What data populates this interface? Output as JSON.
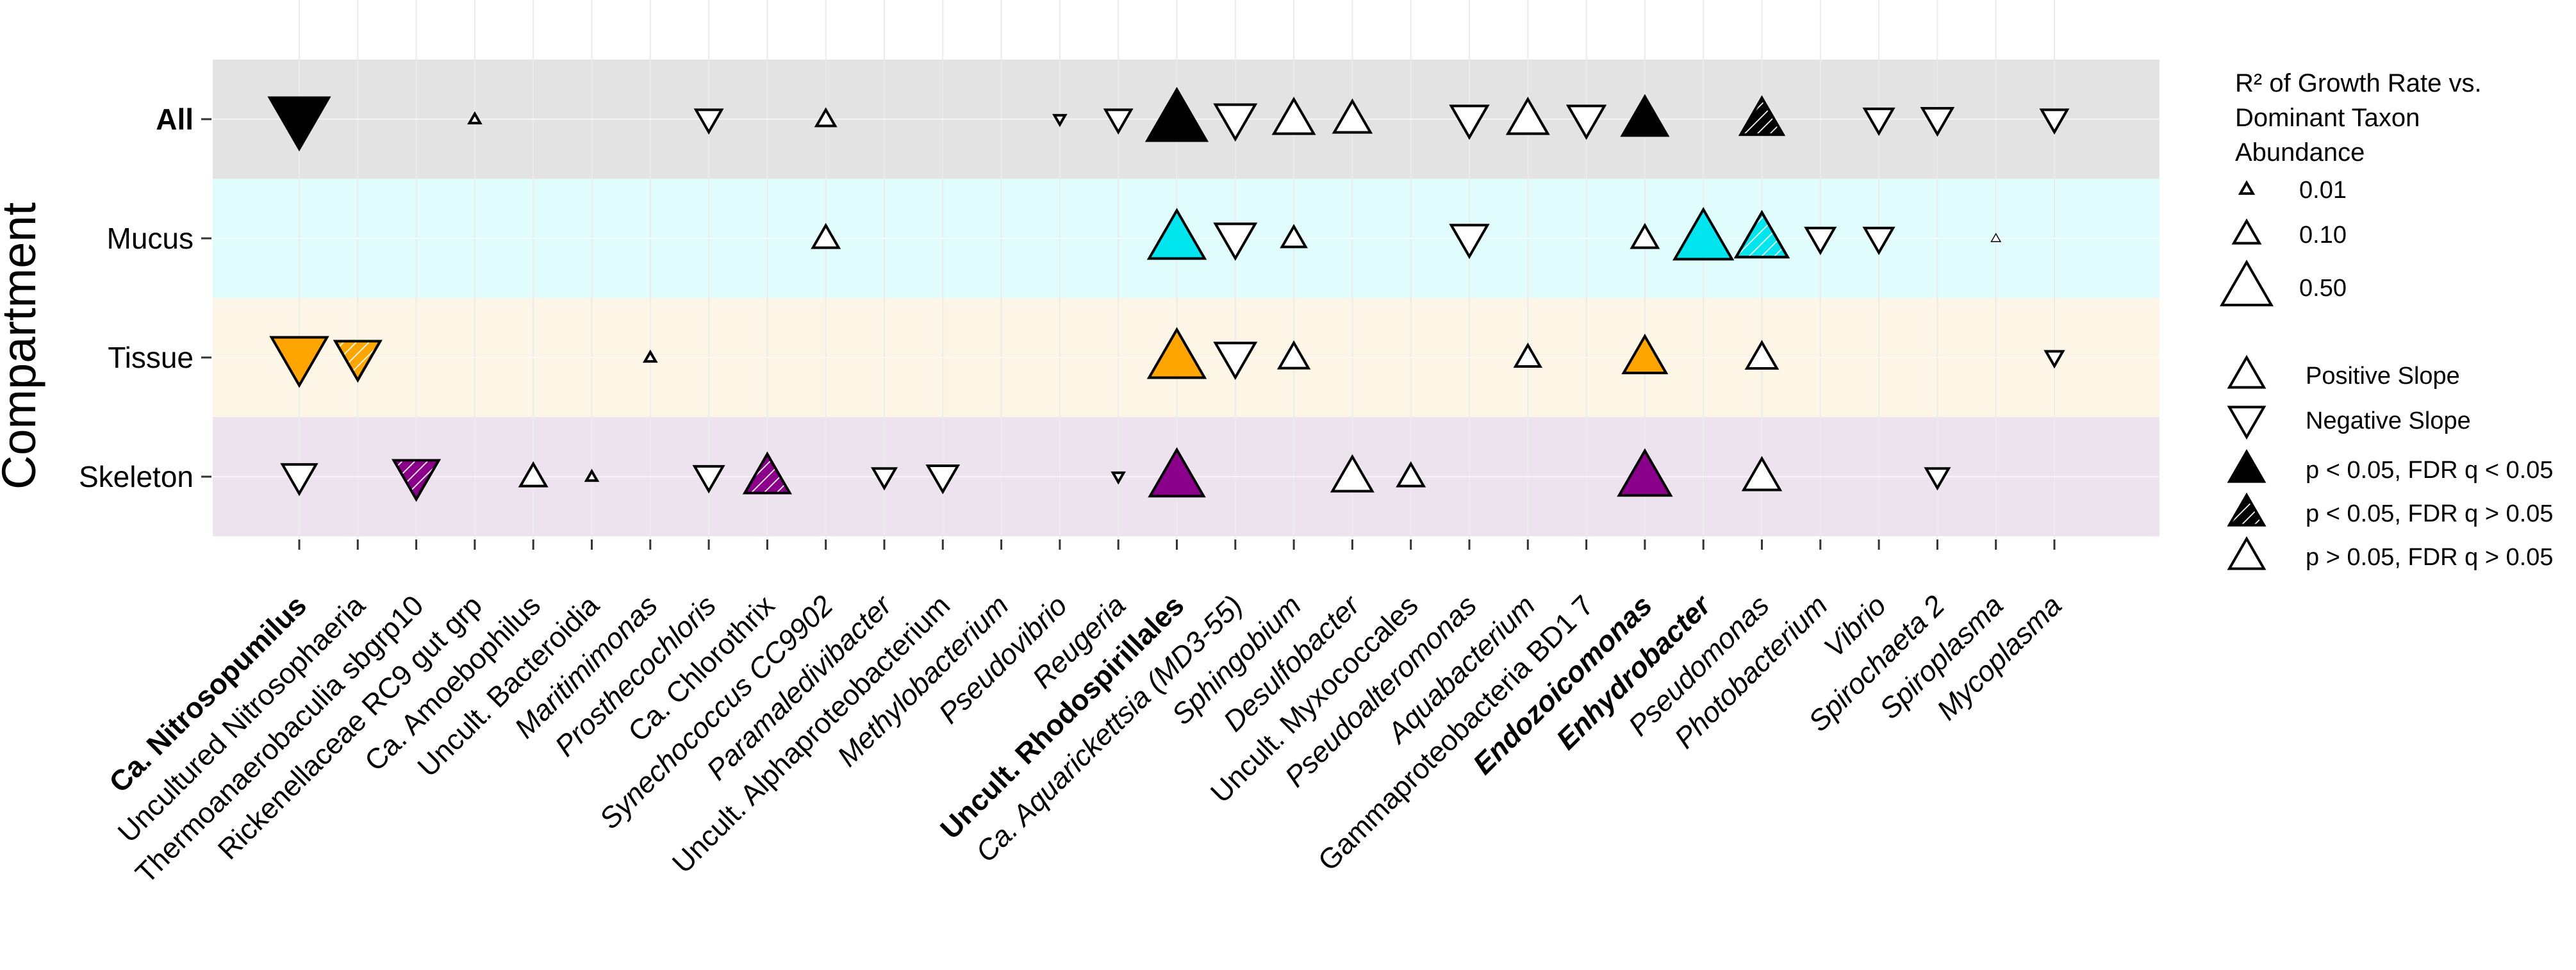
{
  "chart_data": {
    "type": "scatter",
    "y_axis_title": "Compartment",
    "compartments": [
      {
        "label": "All",
        "bold": true
      },
      {
        "label": "Mucus",
        "bold": false
      },
      {
        "label": "Tissue",
        "bold": false
      },
      {
        "label": "Skeleton",
        "bold": false
      }
    ],
    "taxa": [
      {
        "label": "Ca. Nitrosopumilus",
        "style": "bold"
      },
      {
        "label": "Uncultured Nitrosophaeria",
        "style": "normal"
      },
      {
        "label": "Thermoanaerobaculia sbgrp10",
        "style": "normal"
      },
      {
        "label": "Rickenellaceae RC9 gut grp",
        "style": "normal"
      },
      {
        "label": "Ca. Amoebophilus",
        "style": "normal"
      },
      {
        "label": "Uncult. Bacteroidia",
        "style": "normal"
      },
      {
        "label": "Maritimimonas",
        "style": "italic"
      },
      {
        "label": "Prosthecochloris",
        "style": "italic"
      },
      {
        "label": "Ca. Chlorothrix",
        "style": "normal"
      },
      {
        "label": "Synechococcus CC9902",
        "style": "italic"
      },
      {
        "label": "Paramaledivibacter",
        "style": "italic"
      },
      {
        "label": "Uncult. Alphaproteobacterium",
        "style": "normal"
      },
      {
        "label": "Methylobacterium",
        "style": "italic"
      },
      {
        "label": "Pseudovibrio",
        "style": "italic"
      },
      {
        "label": "Reugeria",
        "style": "italic"
      },
      {
        "label": "Uncult. Rhodospirillales",
        "style": "bold"
      },
      {
        "label": "Ca. Aquarickettsia (MD3-55)",
        "style": "italic"
      },
      {
        "label": "Sphingobium",
        "style": "italic"
      },
      {
        "label": "Desulfobacter",
        "style": "italic"
      },
      {
        "label": "Uncult. Myxococcales",
        "style": "normal"
      },
      {
        "label": "Pseudoalteromonas",
        "style": "italic"
      },
      {
        "label": "Aquabacterium",
        "style": "italic"
      },
      {
        "label": "Gammaproteobacteria BD1 7",
        "style": "normal"
      },
      {
        "label": "Endozoicomonas",
        "style": "bolditalic"
      },
      {
        "label": "Enhydrobacter",
        "style": "bolditalic"
      },
      {
        "label": "Pseudomonas",
        "style": "italic"
      },
      {
        "label": "Photobacterium",
        "style": "italic"
      },
      {
        "label": "Vibrio",
        "style": "italic"
      },
      {
        "label": "Spirochaeta 2",
        "style": "italic"
      },
      {
        "label": "Spiroplasma",
        "style": "italic"
      },
      {
        "label": "Mycoplasma",
        "style": "italic"
      }
    ],
    "fill_colors": {
      "All": "#000000",
      "Mucus": "#00e5ee",
      "Tissue": "#ffa500",
      "Skeleton": "#8b008b"
    },
    "band_colors": {
      "All": "#e3e3e3",
      "Mucus": "#e0fcfc",
      "Tissue": "#fdf5e6",
      "Skeleton": "#ede3ee"
    },
    "points": [
      {
        "taxon": 0,
        "compartment": "All",
        "direction": "negative",
        "sig": "sig_fdr",
        "r2": 0.75
      },
      {
        "taxon": 3,
        "compartment": "All",
        "direction": "positive",
        "sig": "ns",
        "r2": 0.005
      },
      {
        "taxon": 7,
        "compartment": "All",
        "direction": "negative",
        "sig": "ns",
        "r2": 0.1
      },
      {
        "taxon": 9,
        "compartment": "All",
        "direction": "positive",
        "sig": "ns",
        "r2": 0.04
      },
      {
        "taxon": 13,
        "compartment": "All",
        "direction": "negative",
        "sig": "ns",
        "r2": 0.005
      },
      {
        "taxon": 14,
        "compartment": "All",
        "direction": "negative",
        "sig": "ns",
        "r2": 0.1
      },
      {
        "taxon": 15,
        "compartment": "All",
        "direction": "positive",
        "sig": "sig_fdr",
        "r2": 0.75
      },
      {
        "taxon": 16,
        "compartment": "All",
        "direction": "negative",
        "sig": "ns",
        "r2": 0.3
      },
      {
        "taxon": 17,
        "compartment": "All",
        "direction": "positive",
        "sig": "ns",
        "r2": 0.3
      },
      {
        "taxon": 18,
        "compartment": "All",
        "direction": "positive",
        "sig": "ns",
        "r2": 0.24
      },
      {
        "taxon": 20,
        "compartment": "All",
        "direction": "negative",
        "sig": "ns",
        "r2": 0.24
      },
      {
        "taxon": 21,
        "compartment": "All",
        "direction": "positive",
        "sig": "ns",
        "r2": 0.3
      },
      {
        "taxon": 22,
        "compartment": "All",
        "direction": "negative",
        "sig": "ns",
        "r2": 0.24
      },
      {
        "taxon": 23,
        "compartment": "All",
        "direction": "positive",
        "sig": "sig_fdr",
        "r2": 0.4
      },
      {
        "taxon": 25,
        "compartment": "All",
        "direction": "positive",
        "sig": "sig_nofdr",
        "r2": 0.35
      },
      {
        "taxon": 27,
        "compartment": "All",
        "direction": "negative",
        "sig": "ns",
        "r2": 0.13
      },
      {
        "taxon": 28,
        "compartment": "All",
        "direction": "negative",
        "sig": "ns",
        "r2": 0.15
      },
      {
        "taxon": 30,
        "compartment": "All",
        "direction": "negative",
        "sig": "ns",
        "r2": 0.1
      },
      {
        "taxon": 9,
        "compartment": "Mucus",
        "direction": "positive",
        "sig": "ns",
        "r2": 0.1
      },
      {
        "taxon": 15,
        "compartment": "Mucus",
        "direction": "positive",
        "sig": "sig_fdr",
        "r2": 0.65
      },
      {
        "taxon": 16,
        "compartment": "Mucus",
        "direction": "negative",
        "sig": "ns",
        "r2": 0.3
      },
      {
        "taxon": 17,
        "compartment": "Mucus",
        "direction": "positive",
        "sig": "ns",
        "r2": 0.08
      },
      {
        "taxon": 20,
        "compartment": "Mucus",
        "direction": "negative",
        "sig": "ns",
        "r2": 0.24
      },
      {
        "taxon": 23,
        "compartment": "Mucus",
        "direction": "positive",
        "sig": "ns",
        "r2": 0.1
      },
      {
        "taxon": 24,
        "compartment": "Mucus",
        "direction": "positive",
        "sig": "sig_fdr",
        "r2": 0.7
      },
      {
        "taxon": 25,
        "compartment": "Mucus",
        "direction": "positive",
        "sig": "sig_nofdr",
        "r2": 0.55
      },
      {
        "taxon": 26,
        "compartment": "Mucus",
        "direction": "negative",
        "sig": "ns",
        "r2": 0.13
      },
      {
        "taxon": 27,
        "compartment": "Mucus",
        "direction": "negative",
        "sig": "ns",
        "r2": 0.13
      },
      {
        "taxon": 29,
        "compartment": "Mucus",
        "direction": "positive",
        "sig": "ns",
        "r2": 0.002
      },
      {
        "taxon": 0,
        "compartment": "Tissue",
        "direction": "negative",
        "sig": "sig_fdr",
        "r2": 0.65
      },
      {
        "taxon": 1,
        "compartment": "Tissue",
        "direction": "negative",
        "sig": "sig_nofdr",
        "r2": 0.4
      },
      {
        "taxon": 6,
        "compartment": "Tissue",
        "direction": "positive",
        "sig": "ns",
        "r2": 0.005
      },
      {
        "taxon": 15,
        "compartment": "Tissue",
        "direction": "positive",
        "sig": "sig_fdr",
        "r2": 0.65
      },
      {
        "taxon": 16,
        "compartment": "Tissue",
        "direction": "negative",
        "sig": "ns",
        "r2": 0.3
      },
      {
        "taxon": 17,
        "compartment": "Tissue",
        "direction": "positive",
        "sig": "ns",
        "r2": 0.14
      },
      {
        "taxon": 21,
        "compartment": "Tissue",
        "direction": "positive",
        "sig": "ns",
        "r2": 0.09
      },
      {
        "taxon": 23,
        "compartment": "Tissue",
        "direction": "positive",
        "sig": "sig_fdr",
        "r2": 0.35
      },
      {
        "taxon": 25,
        "compartment": "Tissue",
        "direction": "positive",
        "sig": "ns",
        "r2": 0.15
      },
      {
        "taxon": 30,
        "compartment": "Tissue",
        "direction": "negative",
        "sig": "ns",
        "r2": 0.03
      },
      {
        "taxon": 0,
        "compartment": "Skeleton",
        "direction": "negative",
        "sig": "ns",
        "r2": 0.2
      },
      {
        "taxon": 2,
        "compartment": "Skeleton",
        "direction": "negative",
        "sig": "sig_nofdr",
        "r2": 0.4
      },
      {
        "taxon": 4,
        "compartment": "Skeleton",
        "direction": "positive",
        "sig": "ns",
        "r2": 0.1
      },
      {
        "taxon": 5,
        "compartment": "Skeleton",
        "direction": "positive",
        "sig": "ns",
        "r2": 0.005
      },
      {
        "taxon": 7,
        "compartment": "Skeleton",
        "direction": "negative",
        "sig": "ns",
        "r2": 0.13
      },
      {
        "taxon": 8,
        "compartment": "Skeleton",
        "direction": "positive",
        "sig": "sig_nofdr",
        "r2": 0.4
      },
      {
        "taxon": 10,
        "compartment": "Skeleton",
        "direction": "negative",
        "sig": "ns",
        "r2": 0.07
      },
      {
        "taxon": 11,
        "compartment": "Skeleton",
        "direction": "negative",
        "sig": "ns",
        "r2": 0.15
      },
      {
        "taxon": 14,
        "compartment": "Skeleton",
        "direction": "negative",
        "sig": "ns",
        "r2": 0.005
      },
      {
        "taxon": 15,
        "compartment": "Skeleton",
        "direction": "positive",
        "sig": "sig_fdr",
        "r2": 0.6
      },
      {
        "taxon": 18,
        "compartment": "Skeleton",
        "direction": "positive",
        "sig": "ns",
        "r2": 0.3
      },
      {
        "taxon": 19,
        "compartment": "Skeleton",
        "direction": "positive",
        "sig": "ns",
        "r2": 0.1
      },
      {
        "taxon": 23,
        "compartment": "Skeleton",
        "direction": "positive",
        "sig": "sig_fdr",
        "r2": 0.55
      },
      {
        "taxon": 25,
        "compartment": "Skeleton",
        "direction": "positive",
        "sig": "ns",
        "r2": 0.24
      },
      {
        "taxon": 28,
        "compartment": "Skeleton",
        "direction": "negative",
        "sig": "ns",
        "r2": 0.07
      }
    ],
    "legend": {
      "size_title_lines": [
        "R² of Growth Rate vs.",
        "Dominant Taxon",
        "Abundance"
      ],
      "size_entries": [
        {
          "label": "0.01",
          "r2": 0.01
        },
        {
          "label": "0.10",
          "r2": 0.1
        },
        {
          "label": "0.50",
          "r2": 0.5
        }
      ],
      "shape_entries": [
        {
          "label": "Positive Slope",
          "direction": "positive",
          "sig": "ns"
        },
        {
          "label": "Negative Slope",
          "direction": "negative",
          "sig": "ns"
        },
        {
          "label": "p < 0.05, FDR q < 0.05",
          "direction": "positive",
          "sig": "sig_fdr"
        },
        {
          "label": "p < 0.05, FDR q > 0.05",
          "direction": "positive",
          "sig": "sig_nofdr"
        },
        {
          "label": "p > 0.05, FDR q > 0.05",
          "direction": "positive",
          "sig": "ns"
        }
      ]
    },
    "grid": true,
    "legend_position": "right"
  }
}
